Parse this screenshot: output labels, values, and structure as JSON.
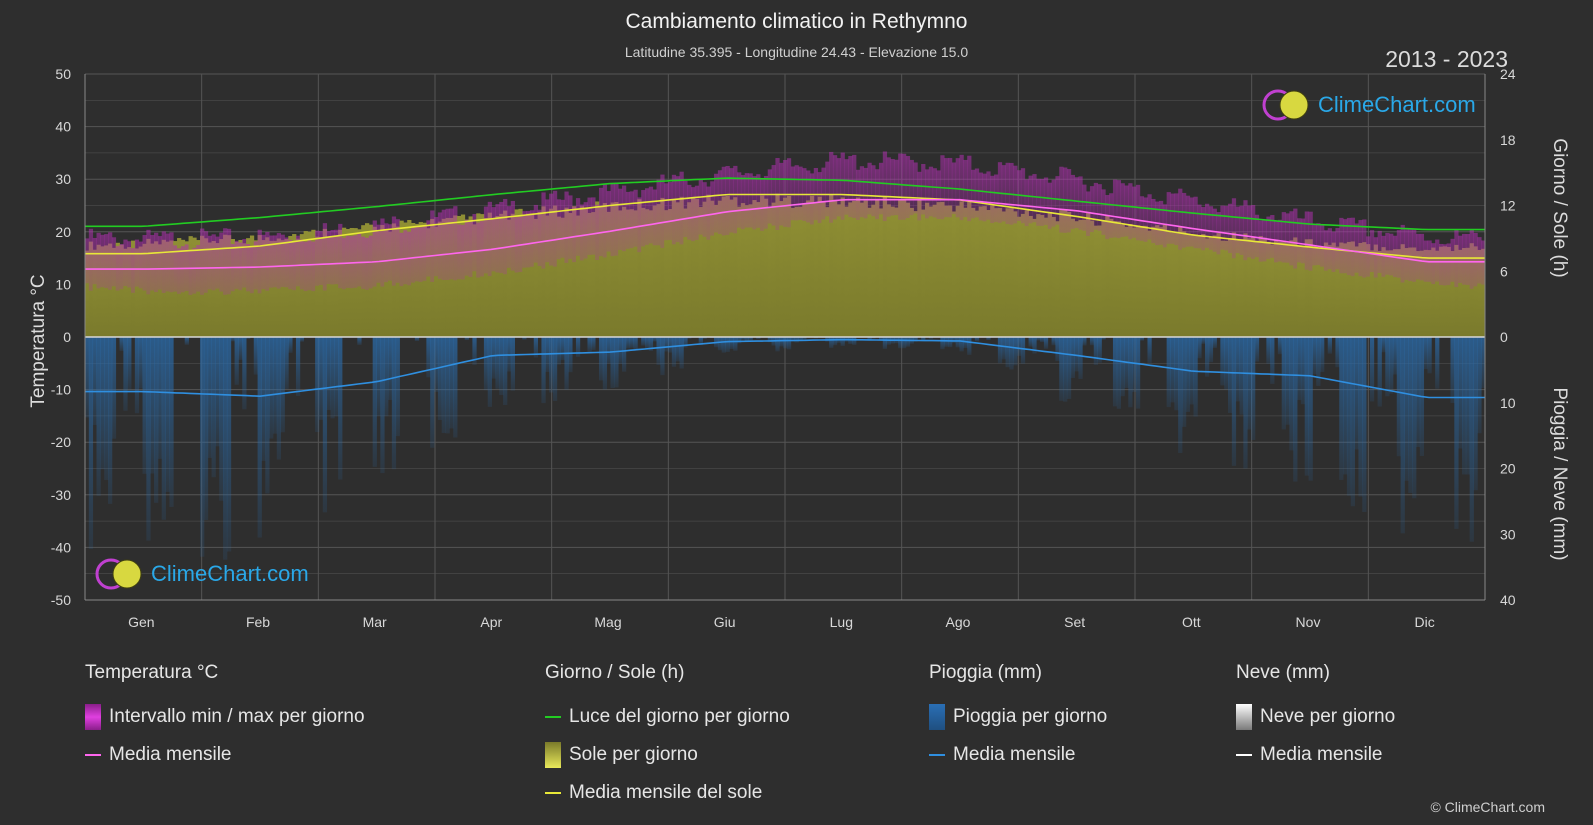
{
  "header": {
    "title": "Cambiamento climatico in Rethymno",
    "subtitle": "Latitudine 35.395 - Longitudine 24.43 - Elevazione 15.0",
    "years": "2013 - 2023"
  },
  "logo": {
    "text": "ClimeChart.com"
  },
  "copyright": "© ClimeChart.com",
  "chart_data": {
    "type": "line",
    "months": [
      "Gen",
      "Feb",
      "Mar",
      "Apr",
      "Mag",
      "Giu",
      "Lug",
      "Ago",
      "Set",
      "Ott",
      "Nov",
      "Dic"
    ],
    "left_axis": {
      "label": "Temperatura °C",
      "ticks": [
        "50",
        "40",
        "30",
        "20",
        "10",
        "0",
        "-10",
        "-20",
        "-30",
        "-40",
        "-50"
      ],
      "range": [
        -50,
        50
      ]
    },
    "right_axis_top": {
      "label": "Giorno / Sole (h)",
      "ticks": [
        "24",
        "18",
        "12",
        "6",
        "0"
      ],
      "range": [
        0,
        24
      ]
    },
    "right_axis_bottom": {
      "label": "Pioggia / Neve (mm)",
      "ticks": [
        "0",
        "10",
        "20",
        "30",
        "40"
      ],
      "range": [
        0,
        40
      ]
    },
    "series": [
      {
        "name": "Luce del giorno per giorno",
        "unit": "h",
        "color": "#22cc22",
        "values": [
          10.1,
          10.9,
          11.9,
          13.0,
          14.0,
          14.5,
          14.3,
          13.5,
          12.4,
          11.3,
          10.3,
          9.8
        ]
      },
      {
        "name": "Media mensile del sole",
        "unit": "h",
        "color": "#e8e838",
        "values": [
          7.6,
          8.3,
          9.7,
          10.8,
          12.0,
          13.0,
          13.0,
          12.5,
          11.0,
          9.3,
          8.2,
          7.2
        ]
      },
      {
        "name": "Media mensile",
        "unit": "°C",
        "color": "#ff66ee",
        "values": [
          12.9,
          13.3,
          14.3,
          16.7,
          20.1,
          23.8,
          26.1,
          26.1,
          24.0,
          20.6,
          17.5,
          14.3
        ]
      },
      {
        "name": "Pioggia media mensile",
        "unit": "mm",
        "color": "#2f8fe0",
        "values": [
          8.3,
          9.0,
          6.8,
          2.8,
          2.3,
          0.7,
          0.4,
          0.6,
          2.8,
          5.2,
          5.9,
          9.2
        ]
      }
    ],
    "max_temp_approx": [
      18.5,
      18.8,
      21.0,
      24.0,
      27.5,
      31.0,
      33.5,
      33.0,
      30.0,
      26.0,
      22.0,
      19.0
    ],
    "min_temp_approx": [
      9.5,
      9.5,
      10.5,
      13.0,
      16.5,
      20.5,
      23.5,
      23.5,
      21.0,
      17.5,
      14.0,
      11.0
    ],
    "sunshine_daily_approx_h": [
      9.0,
      9.5,
      10.5,
      11.5,
      12.5,
      13.2,
      13.0,
      12.6,
      11.5,
      10.0,
      9.0,
      8.5
    ]
  },
  "legend": {
    "temperature": {
      "head": "Temperatura °C",
      "range": "Intervallo min / max per giorno",
      "mean": "Media mensile"
    },
    "sun": {
      "head": "Giorno / Sole (h)",
      "daylight": "Luce del giorno per giorno",
      "sun": "Sole per giorno",
      "sun_mean": "Media mensile del sole"
    },
    "rain": {
      "head": "Pioggia (mm)",
      "rain": "Pioggia per giorno",
      "mean": "Media mensile"
    },
    "snow": {
      "head": "Neve (mm)",
      "snow": "Neve per giorno",
      "mean": "Media mensile"
    }
  },
  "colors": {
    "background": "#2e2e2e",
    "daylight": "#22cc22",
    "sun_mean": "#e8e838",
    "sun_fill": "#8a8a2e",
    "temp_mean": "#ff66ee",
    "temp_range": "#c030c0",
    "rain": "#2f8fe0",
    "snow": "#ffffff"
  }
}
